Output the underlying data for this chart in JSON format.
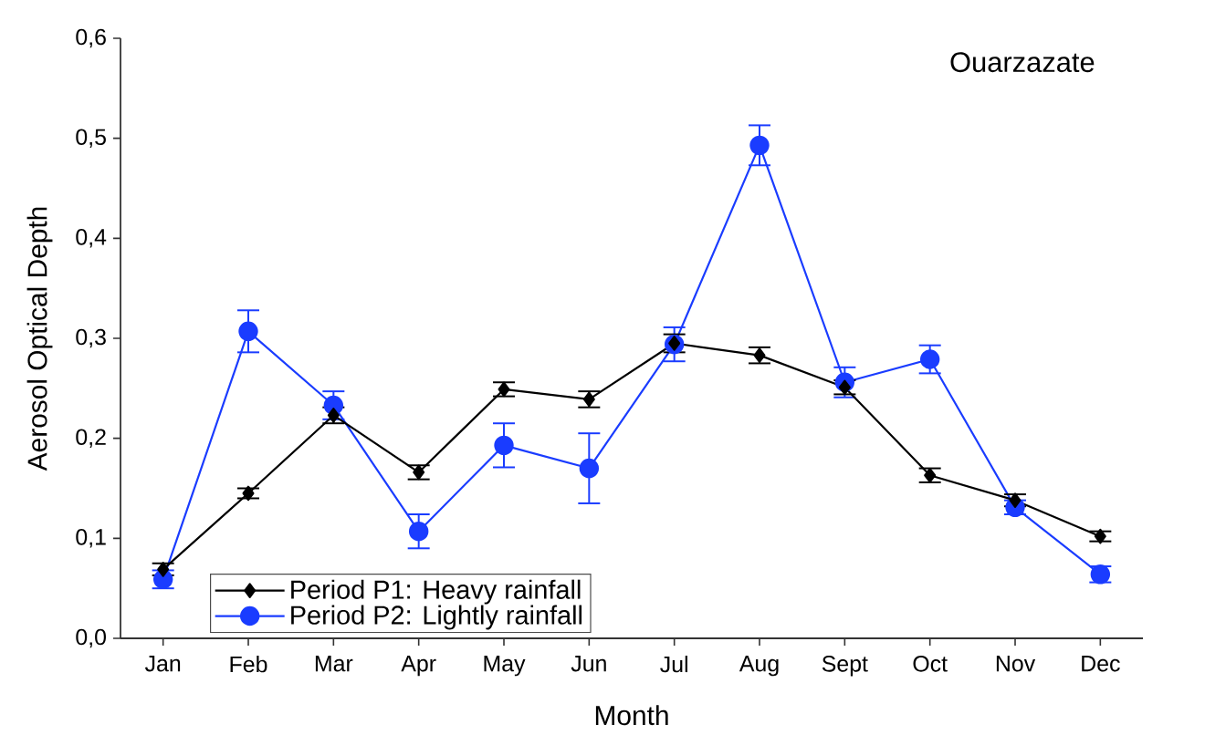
{
  "chart_data": {
    "type": "line",
    "title": "Ouarzazate",
    "xlabel": "Month",
    "ylabel": "Aerosol Optical Depth",
    "categories": [
      "Jan",
      "Feb",
      "Mar",
      "Apr",
      "May",
      "Jun",
      "Jul",
      "Aug",
      "Sept",
      "Oct",
      "Nov",
      "Dec"
    ],
    "ylim": [
      0,
      0.6
    ],
    "yticks": [
      {
        "value": 0,
        "label": "0,0"
      },
      {
        "value": 0.1,
        "label": "0,1"
      },
      {
        "value": 0.2,
        "label": "0,2"
      },
      {
        "value": 0.3,
        "label": "0,3"
      },
      {
        "value": 0.4,
        "label": "0,4"
      },
      {
        "value": 0.5,
        "label": "0,5"
      },
      {
        "value": 0.6,
        "label": "0,6"
      }
    ],
    "legend": "bottom left",
    "line_style": "solid",
    "series": [
      {
        "name": "Period P1: Heavy rainfall",
        "color": "#000000",
        "marker": "diamond",
        "values": [
          0.069,
          0.145,
          0.223,
          0.166,
          0.249,
          0.239,
          0.295,
          0.283,
          0.251,
          0.163,
          0.138,
          0.102
        ],
        "errors": [
          0.006,
          0.005,
          0.008,
          0.007,
          0.007,
          0.008,
          0.009,
          0.008,
          0.007,
          0.007,
          0.006,
          0.005
        ]
      },
      {
        "name": "Period P2: Lightly rainfall",
        "color": "#1a3cff",
        "marker": "circle",
        "values": [
          0.059,
          0.307,
          0.233,
          0.107,
          0.193,
          0.17,
          0.294,
          0.493,
          0.256,
          0.279,
          0.131,
          0.064
        ],
        "errors": [
          0.009,
          0.021,
          0.014,
          0.017,
          0.022,
          0.035,
          0.017,
          0.02,
          0.015,
          0.014,
          0.007,
          0.008
        ]
      }
    ]
  }
}
